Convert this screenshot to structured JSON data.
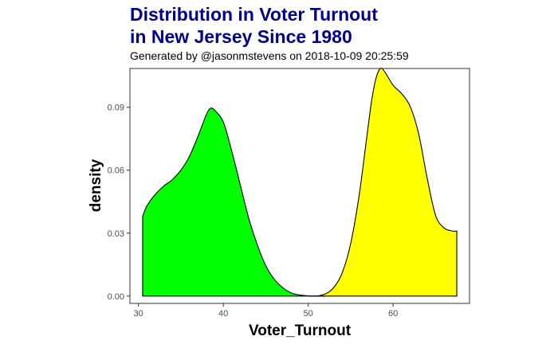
{
  "chart_data": {
    "type": "area",
    "title_lines": [
      "Distribution in Voter Turnout",
      "in New Jersey Since 1980"
    ],
    "subtitle": "Generated by @jasonmstevens on 2018-10-09 20:25:59",
    "xlabel": "Voter_Turnout",
    "ylabel": "density",
    "xlim": [
      29,
      69
    ],
    "ylim": [
      -0.0035,
      0.1085
    ],
    "x_ticks": [
      30,
      40,
      50,
      60
    ],
    "x_tick_labels": [
      "30",
      "40",
      "50",
      "60"
    ],
    "y_ticks": [
      0,
      0.03,
      0.06,
      0.09
    ],
    "y_tick_labels": [
      "0.00",
      "0.03",
      "0.06",
      "0.09"
    ],
    "grid": false,
    "legend": "none",
    "series": [
      {
        "color": "#00FF00",
        "x": [
          30.5,
          31,
          32,
          33,
          34,
          35,
          36,
          37,
          38,
          38.5,
          39,
          40,
          41,
          42,
          43,
          44,
          45,
          46,
          47,
          48,
          49,
          50,
          51,
          52
        ],
        "y": [
          0.038,
          0.043,
          0.0485,
          0.0525,
          0.0555,
          0.06,
          0.0665,
          0.076,
          0.0865,
          0.0895,
          0.0885,
          0.083,
          0.069,
          0.053,
          0.037,
          0.0245,
          0.0145,
          0.008,
          0.004,
          0.0015,
          0.0005,
          0.0001,
          0.0,
          0.0
        ]
      },
      {
        "color": "#FFFF00",
        "x": [
          50,
          51,
          52,
          53,
          54,
          55,
          56,
          57,
          57.5,
          58,
          58.5,
          59,
          60,
          61,
          62,
          63,
          64,
          65,
          66,
          67,
          67.5
        ],
        "y": [
          0.0,
          0.0,
          0.001,
          0.004,
          0.011,
          0.025,
          0.048,
          0.079,
          0.094,
          0.104,
          0.1085,
          0.107,
          0.1005,
          0.0965,
          0.0905,
          0.0775,
          0.0565,
          0.0385,
          0.0325,
          0.031,
          0.031
        ]
      }
    ]
  }
}
